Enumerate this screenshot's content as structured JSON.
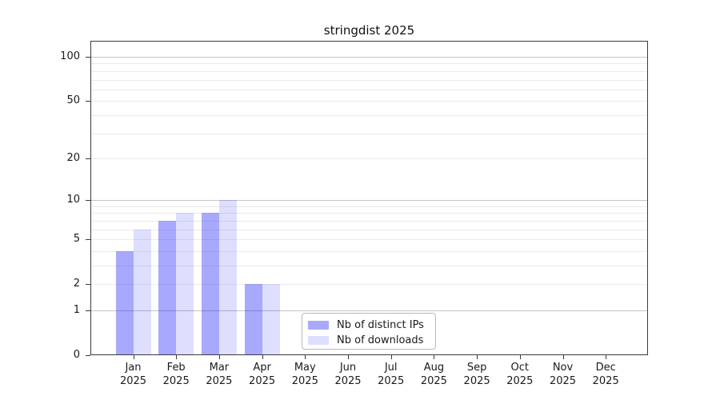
{
  "chart_data": {
    "type": "bar",
    "title": "stringdist 2025",
    "year_label": "2025",
    "categories": [
      "Jan",
      "Feb",
      "Mar",
      "Apr",
      "May",
      "Jun",
      "Jul",
      "Aug",
      "Sep",
      "Oct",
      "Nov",
      "Dec"
    ],
    "series": [
      {
        "name": "Nb of distinct IPs",
        "color": "rgba(0, 0, 245, 0.34)",
        "values": [
          4,
          7,
          8,
          2,
          0,
          0,
          0,
          0,
          0,
          0,
          0,
          0
        ]
      },
      {
        "name": "Nb of downloads",
        "color": "rgba(0, 0, 245, 0.13)",
        "values": [
          6,
          8,
          10,
          2,
          0,
          0,
          0,
          0,
          0,
          0,
          0,
          0
        ]
      }
    ],
    "yticks": [
      0,
      1,
      2,
      5,
      10,
      20,
      50,
      100
    ],
    "ylim": [
      0,
      100
    ],
    "yscale": "log1p",
    "grid": true,
    "legend_position": "lower-center"
  }
}
